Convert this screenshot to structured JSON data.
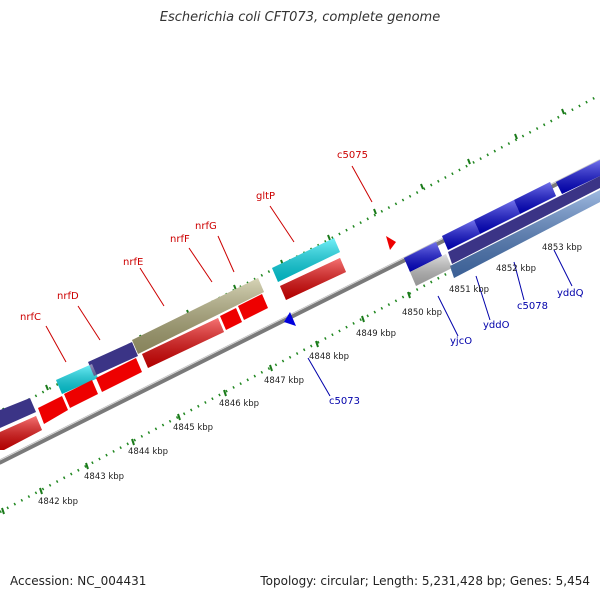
{
  "title": "Escherichia coli CFT073, complete genome",
  "footer": {
    "accession": "Accession: NC_004431",
    "summary": "Topology: circular; Length: 5,231,428 bp; Genes: 5,454"
  },
  "colors": {
    "red_cds": "#ee0000",
    "blue_cds": "#0000dd",
    "purple": "#3b3486",
    "cyan": "#00e5f5",
    "olive": "#b5b07a",
    "light_blue": "#4f80c8",
    "gray": "#c8c8c8",
    "backbone": "#808080",
    "tick": "#228822",
    "label_red": "#cc0000",
    "label_blue": "#0000aa"
  },
  "ruler_labels": [
    "4842 kbp",
    "4843 kbp",
    "4844 kbp",
    "4845 kbp",
    "4846 kbp",
    "4847 kbp",
    "4848 kbp",
    "4849 kbp",
    "4850 kbp",
    "4851 kbp",
    "4852 kbp",
    "4853 kbp"
  ],
  "gene_labels": {
    "red": [
      "nrfC",
      "nrfD",
      "nrfE",
      "nrfF",
      "nrfG",
      "gltP",
      "c5075"
    ],
    "blue": [
      "c5073",
      "yjcO",
      "yddO",
      "c5078",
      "yddQ"
    ]
  }
}
